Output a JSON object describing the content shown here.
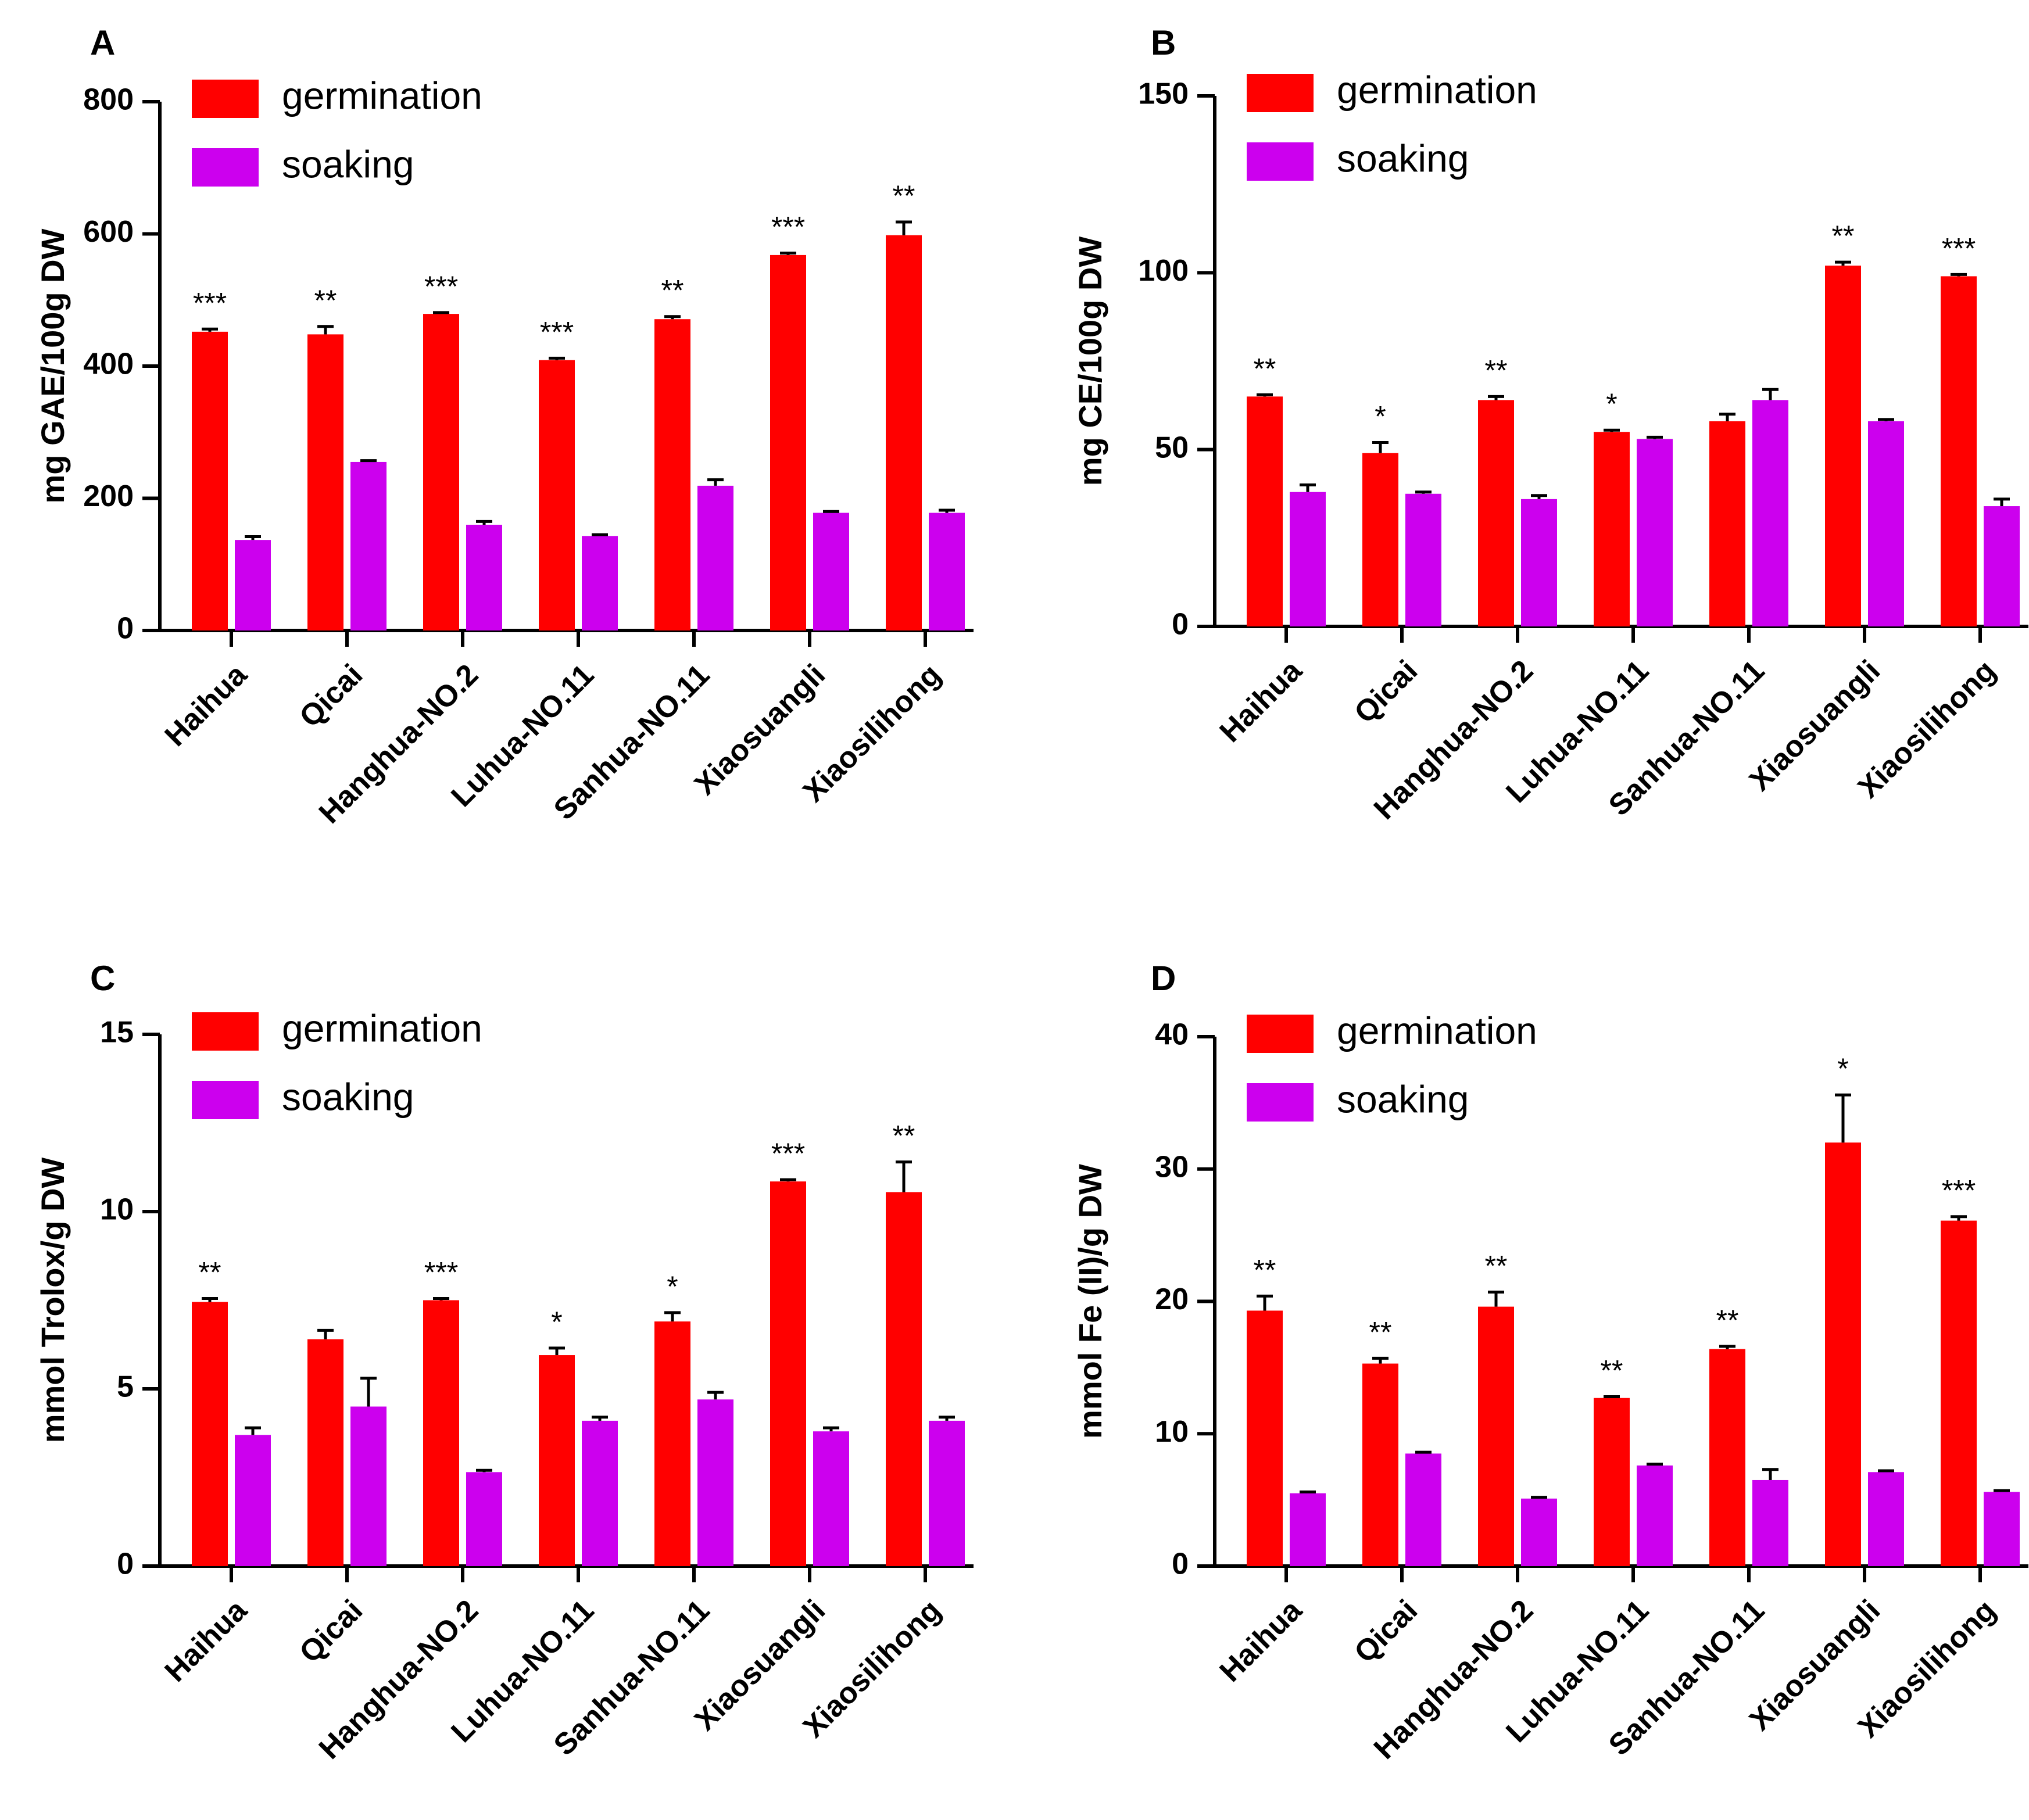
{
  "colors": {
    "germination": "#ff0000",
    "soaking": "#cc00ee",
    "axis": "#000000"
  },
  "legend": {
    "germination": "germination",
    "soaking": "soaking"
  },
  "chart_data": [
    {
      "panel": "A",
      "type": "bar",
      "title": "",
      "xlabel": "",
      "ylabel": "mg GAE/100g DW",
      "ylim": [
        0,
        800
      ],
      "yticks": [
        0,
        200,
        400,
        600,
        800
      ],
      "categories": [
        "Haihua",
        "Qicai",
        "Hanghua-NO.2",
        "Luhua-NO.11",
        "Sanhua-NO.11",
        "Xiaosuangli",
        "Xiaosilihong"
      ],
      "series": [
        {
          "name": "germination",
          "values": [
            452,
            448,
            479,
            409,
            471,
            568,
            598
          ],
          "errors": [
            4,
            12,
            2,
            3,
            4,
            3,
            20
          ]
        },
        {
          "name": "soaking",
          "values": [
            137,
            255,
            160,
            143,
            219,
            178,
            178
          ],
          "errors": [
            5,
            2,
            5,
            2,
            9,
            2,
            4
          ]
        }
      ],
      "significance": [
        "***",
        "**",
        "***",
        "***",
        "**",
        "***",
        "**"
      ],
      "legend_position": "top-left"
    },
    {
      "panel": "B",
      "type": "bar",
      "title": "",
      "xlabel": "",
      "ylabel": "mg CE/100g DW",
      "ylim": [
        0,
        150
      ],
      "yticks": [
        0,
        50,
        100,
        150
      ],
      "categories": [
        "Haihua",
        "Qicai",
        "Hanghua-NO.2",
        "Luhua-NO.11",
        "Sanhua-NO.11",
        "Xiaosuangli",
        "Xiaosilihong"
      ],
      "series": [
        {
          "name": "germination",
          "values": [
            65,
            49,
            64,
            55,
            58,
            102,
            99
          ],
          "errors": [
            0.5,
            3,
            1,
            0.5,
            2,
            1,
            0.5
          ]
        },
        {
          "name": "soaking",
          "values": [
            38,
            37.5,
            36,
            53,
            64,
            58,
            34
          ],
          "errors": [
            2,
            0.5,
            1,
            0.5,
            3,
            0.5,
            2
          ]
        }
      ],
      "significance": [
        "**",
        "*",
        "**",
        "*",
        "",
        "**",
        "***"
      ],
      "legend_position": "top-left"
    },
    {
      "panel": "C",
      "type": "bar",
      "title": "",
      "xlabel": "",
      "ylabel": "mmol Trolox/g DW",
      "ylim": [
        0,
        15
      ],
      "yticks": [
        0,
        5,
        10,
        15
      ],
      "categories": [
        "Haihua",
        "Qicai",
        "Hanghua-NO.2",
        "Luhua-NO.11",
        "Sanhua-NO.11",
        "Xiaosuangli",
        "Xiaosilihong"
      ],
      "series": [
        {
          "name": "germination",
          "values": [
            7.45,
            6.4,
            7.5,
            5.95,
            6.9,
            10.85,
            10.55
          ],
          "errors": [
            0.1,
            0.25,
            0.05,
            0.2,
            0.25,
            0.05,
            0.85
          ]
        },
        {
          "name": "soaking",
          "values": [
            3.7,
            4.5,
            2.65,
            4.1,
            4.7,
            3.8,
            4.1
          ],
          "errors": [
            0.2,
            0.8,
            0.05,
            0.1,
            0.2,
            0.1,
            0.1
          ]
        }
      ],
      "significance": [
        "**",
        "",
        "***",
        "*",
        "*",
        "***",
        "**"
      ],
      "legend_position": "top-left"
    },
    {
      "panel": "D",
      "type": "bar",
      "title": "",
      "xlabel": "",
      "ylabel": "mmol Fe (II)/g DW",
      "ylim": [
        0,
        40
      ],
      "yticks": [
        0,
        10,
        20,
        30,
        40
      ],
      "categories": [
        "Haihua",
        "Qicai",
        "Hanghua-NO.2",
        "Luhua-NO.11",
        "Sanhua-NO.11",
        "Xiaosuangli",
        "Xiaosilihong"
      ],
      "series": [
        {
          "name": "germination",
          "values": [
            19.3,
            15.3,
            19.6,
            12.7,
            16.4,
            32,
            26.1
          ],
          "errors": [
            1.1,
            0.4,
            1.1,
            0.1,
            0.2,
            3.6,
            0.3
          ]
        },
        {
          "name": "soaking",
          "values": [
            5.5,
            8.5,
            5.1,
            7.6,
            6.5,
            7.1,
            5.6
          ],
          "errors": [
            0.1,
            0.1,
            0.1,
            0.1,
            0.8,
            0.1,
            0.1
          ]
        }
      ],
      "significance": [
        "**",
        "**",
        "**",
        "**",
        "**",
        "*",
        "***"
      ],
      "legend_position": "top-left"
    }
  ]
}
